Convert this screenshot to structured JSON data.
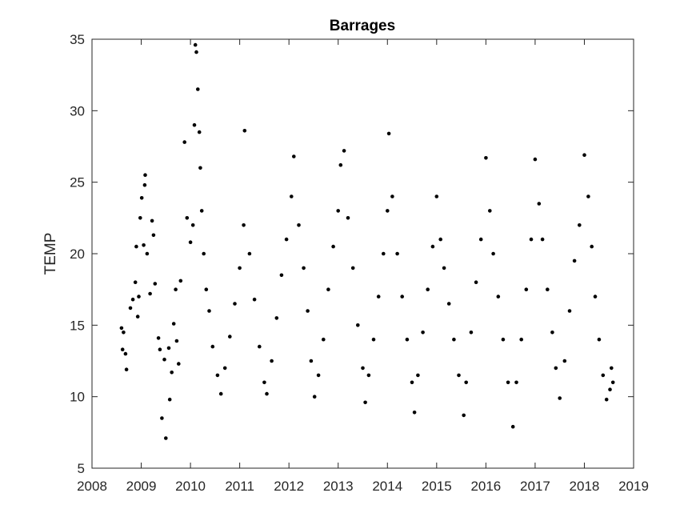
{
  "chart_data": {
    "type": "scatter",
    "title": "Barrages",
    "xlabel": "",
    "ylabel": "TEMP",
    "xlim": [
      2008,
      2019
    ],
    "ylim": [
      5,
      35
    ],
    "xticks": [
      "2008",
      "2009",
      "2010",
      "2011",
      "2012",
      "2013",
      "2014",
      "2015",
      "2016",
      "2017",
      "2018",
      "2019"
    ],
    "yticks": [
      "5",
      "10",
      "15",
      "20",
      "25",
      "30",
      "35"
    ],
    "grid": false,
    "legend": "none",
    "marker_color": "#000000",
    "series": [
      {
        "points": [
          [
            2008.6,
            14.8
          ],
          [
            2008.62,
            13.3
          ],
          [
            2008.64,
            14.5
          ],
          [
            2008.68,
            13.0
          ],
          [
            2008.7,
            11.9
          ],
          [
            2008.78,
            16.2
          ],
          [
            2008.83,
            16.8
          ],
          [
            2008.88,
            18.0
          ],
          [
            2008.9,
            20.5
          ],
          [
            2008.93,
            15.6
          ],
          [
            2008.95,
            17.0
          ],
          [
            2008.98,
            22.5
          ],
          [
            2009.01,
            23.9
          ],
          [
            2009.05,
            20.6
          ],
          [
            2009.07,
            24.8
          ],
          [
            2009.08,
            25.5
          ],
          [
            2009.12,
            20.0
          ],
          [
            2009.18,
            17.2
          ],
          [
            2009.22,
            22.3
          ],
          [
            2009.25,
            21.3
          ],
          [
            2009.28,
            17.9
          ],
          [
            2009.35,
            14.1
          ],
          [
            2009.38,
            13.3
          ],
          [
            2009.42,
            8.5
          ],
          [
            2009.47,
            12.6
          ],
          [
            2009.5,
            7.1
          ],
          [
            2009.56,
            13.4
          ],
          [
            2009.58,
            9.8
          ],
          [
            2009.62,
            11.7
          ],
          [
            2009.66,
            15.1
          ],
          [
            2009.7,
            17.5
          ],
          [
            2009.72,
            13.9
          ],
          [
            2009.76,
            12.3
          ],
          [
            2009.8,
            18.1
          ],
          [
            2009.88,
            27.8
          ],
          [
            2009.93,
            22.5
          ],
          [
            2010.0,
            20.8
          ],
          [
            2010.05,
            22.0
          ],
          [
            2010.08,
            29.0
          ],
          [
            2010.1,
            34.6
          ],
          [
            2010.12,
            34.1
          ],
          [
            2010.15,
            31.5
          ],
          [
            2010.18,
            28.5
          ],
          [
            2010.2,
            26.0
          ],
          [
            2010.23,
            23.0
          ],
          [
            2010.27,
            20.0
          ],
          [
            2010.32,
            17.5
          ],
          [
            2010.38,
            16.0
          ],
          [
            2010.45,
            13.5
          ],
          [
            2010.55,
            11.5
          ],
          [
            2010.62,
            10.2
          ],
          [
            2010.7,
            12.0
          ],
          [
            2010.8,
            14.2
          ],
          [
            2010.9,
            16.5
          ],
          [
            2011.0,
            19.0
          ],
          [
            2011.08,
            22.0
          ],
          [
            2011.1,
            28.6
          ],
          [
            2011.2,
            20.0
          ],
          [
            2011.3,
            16.8
          ],
          [
            2011.4,
            13.5
          ],
          [
            2011.5,
            11.0
          ],
          [
            2011.55,
            10.2
          ],
          [
            2011.65,
            12.5
          ],
          [
            2011.75,
            15.5
          ],
          [
            2011.85,
            18.5
          ],
          [
            2011.95,
            21.0
          ],
          [
            2012.05,
            24.0
          ],
          [
            2012.1,
            26.8
          ],
          [
            2012.2,
            22.0
          ],
          [
            2012.3,
            19.0
          ],
          [
            2012.38,
            16.0
          ],
          [
            2012.45,
            12.5
          ],
          [
            2012.52,
            10.0
          ],
          [
            2012.6,
            11.5
          ],
          [
            2012.7,
            14.0
          ],
          [
            2012.8,
            17.5
          ],
          [
            2012.9,
            20.5
          ],
          [
            2013.0,
            23.0
          ],
          [
            2013.05,
            26.2
          ],
          [
            2013.12,
            27.2
          ],
          [
            2013.2,
            22.5
          ],
          [
            2013.3,
            19.0
          ],
          [
            2013.4,
            15.0
          ],
          [
            2013.5,
            12.0
          ],
          [
            2013.55,
            9.6
          ],
          [
            2013.62,
            11.5
          ],
          [
            2013.72,
            14.0
          ],
          [
            2013.82,
            17.0
          ],
          [
            2013.92,
            20.0
          ],
          [
            2014.0,
            23.0
          ],
          [
            2014.03,
            28.4
          ],
          [
            2014.1,
            24.0
          ],
          [
            2014.2,
            20.0
          ],
          [
            2014.3,
            17.0
          ],
          [
            2014.4,
            14.0
          ],
          [
            2014.5,
            11.0
          ],
          [
            2014.55,
            8.9
          ],
          [
            2014.62,
            11.5
          ],
          [
            2014.72,
            14.5
          ],
          [
            2014.82,
            17.5
          ],
          [
            2014.92,
            20.5
          ],
          [
            2015.0,
            24.0
          ],
          [
            2015.08,
            21.0
          ],
          [
            2015.15,
            19.0
          ],
          [
            2015.25,
            16.5
          ],
          [
            2015.35,
            14.0
          ],
          [
            2015.45,
            11.5
          ],
          [
            2015.55,
            8.7
          ],
          [
            2015.6,
            11.0
          ],
          [
            2015.7,
            14.5
          ],
          [
            2015.8,
            18.0
          ],
          [
            2015.9,
            21.0
          ],
          [
            2016.0,
            26.7
          ],
          [
            2016.08,
            23.0
          ],
          [
            2016.15,
            20.0
          ],
          [
            2016.25,
            17.0
          ],
          [
            2016.35,
            14.0
          ],
          [
            2016.45,
            11.0
          ],
          [
            2016.55,
            7.9
          ],
          [
            2016.62,
            11.0
          ],
          [
            2016.72,
            14.0
          ],
          [
            2016.82,
            17.5
          ],
          [
            2016.92,
            21.0
          ],
          [
            2017.0,
            26.6
          ],
          [
            2017.08,
            23.5
          ],
          [
            2017.15,
            21.0
          ],
          [
            2017.25,
            17.5
          ],
          [
            2017.35,
            14.5
          ],
          [
            2017.42,
            12.0
          ],
          [
            2017.5,
            9.9
          ],
          [
            2017.6,
            12.5
          ],
          [
            2017.7,
            16.0
          ],
          [
            2017.8,
            19.5
          ],
          [
            2017.9,
            22.0
          ],
          [
            2018.0,
            26.9
          ],
          [
            2018.08,
            24.0
          ],
          [
            2018.15,
            20.5
          ],
          [
            2018.22,
            17.0
          ],
          [
            2018.3,
            14.0
          ],
          [
            2018.38,
            11.5
          ],
          [
            2018.45,
            9.8
          ],
          [
            2018.52,
            10.5
          ],
          [
            2018.55,
            12.0
          ],
          [
            2018.58,
            11.0
          ]
        ]
      }
    ]
  }
}
